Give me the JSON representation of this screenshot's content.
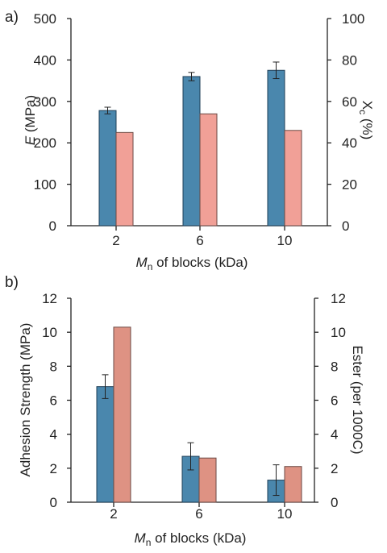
{
  "chart_data": [
    {
      "panel_label": "a)",
      "type": "bar",
      "categories": [
        "2",
        "6",
        "10"
      ],
      "xlabel_italic": "M",
      "xlabel_sub": "n",
      "xlabel_rest": " of blocks (kDa)",
      "ylabel_left_italic": "E",
      "ylabel_left_rest": " (MPa)",
      "ylabel_right_main": "X",
      "ylabel_right_sub": "c",
      "ylabel_right_rest": " (%)",
      "ylim_left": [
        0,
        500
      ],
      "ylim_right": [
        0,
        100
      ],
      "yticks_left": [
        "0",
        "100",
        "200",
        "300",
        "400",
        "500"
      ],
      "yticks_right": [
        "0",
        "20",
        "40",
        "60",
        "80",
        "100"
      ],
      "series": [
        {
          "axis": "left",
          "color": "#4a87ad",
          "values": [
            278,
            360,
            375
          ],
          "errors": [
            8,
            10,
            20
          ]
        },
        {
          "axis": "right",
          "color": "#f1a097",
          "values": [
            45,
            54,
            46
          ]
        }
      ]
    },
    {
      "panel_label": "b)",
      "type": "bar",
      "categories": [
        "2",
        "6",
        "10"
      ],
      "xlabel_italic": "M",
      "xlabel_sub": "n",
      "xlabel_rest": " of blocks (kDa)",
      "ylabel_left": "Adhesion Strength (MPa)",
      "ylabel_right": "Ester (per 1000C)",
      "ylim_left": [
        0,
        12
      ],
      "ylim_right": [
        0,
        12
      ],
      "yticks_left": [
        "0",
        "2",
        "4",
        "6",
        "8",
        "10",
        "12"
      ],
      "yticks_right": [
        "0",
        "2",
        "4",
        "6",
        "8",
        "10",
        "12"
      ],
      "series": [
        {
          "axis": "left",
          "color": "#4a87ad",
          "values": [
            6.8,
            2.7,
            1.3
          ],
          "errors": [
            0.7,
            0.8,
            0.9
          ]
        },
        {
          "axis": "right",
          "color": "#de9283",
          "values": [
            10.3,
            2.6,
            2.1
          ]
        }
      ]
    }
  ]
}
